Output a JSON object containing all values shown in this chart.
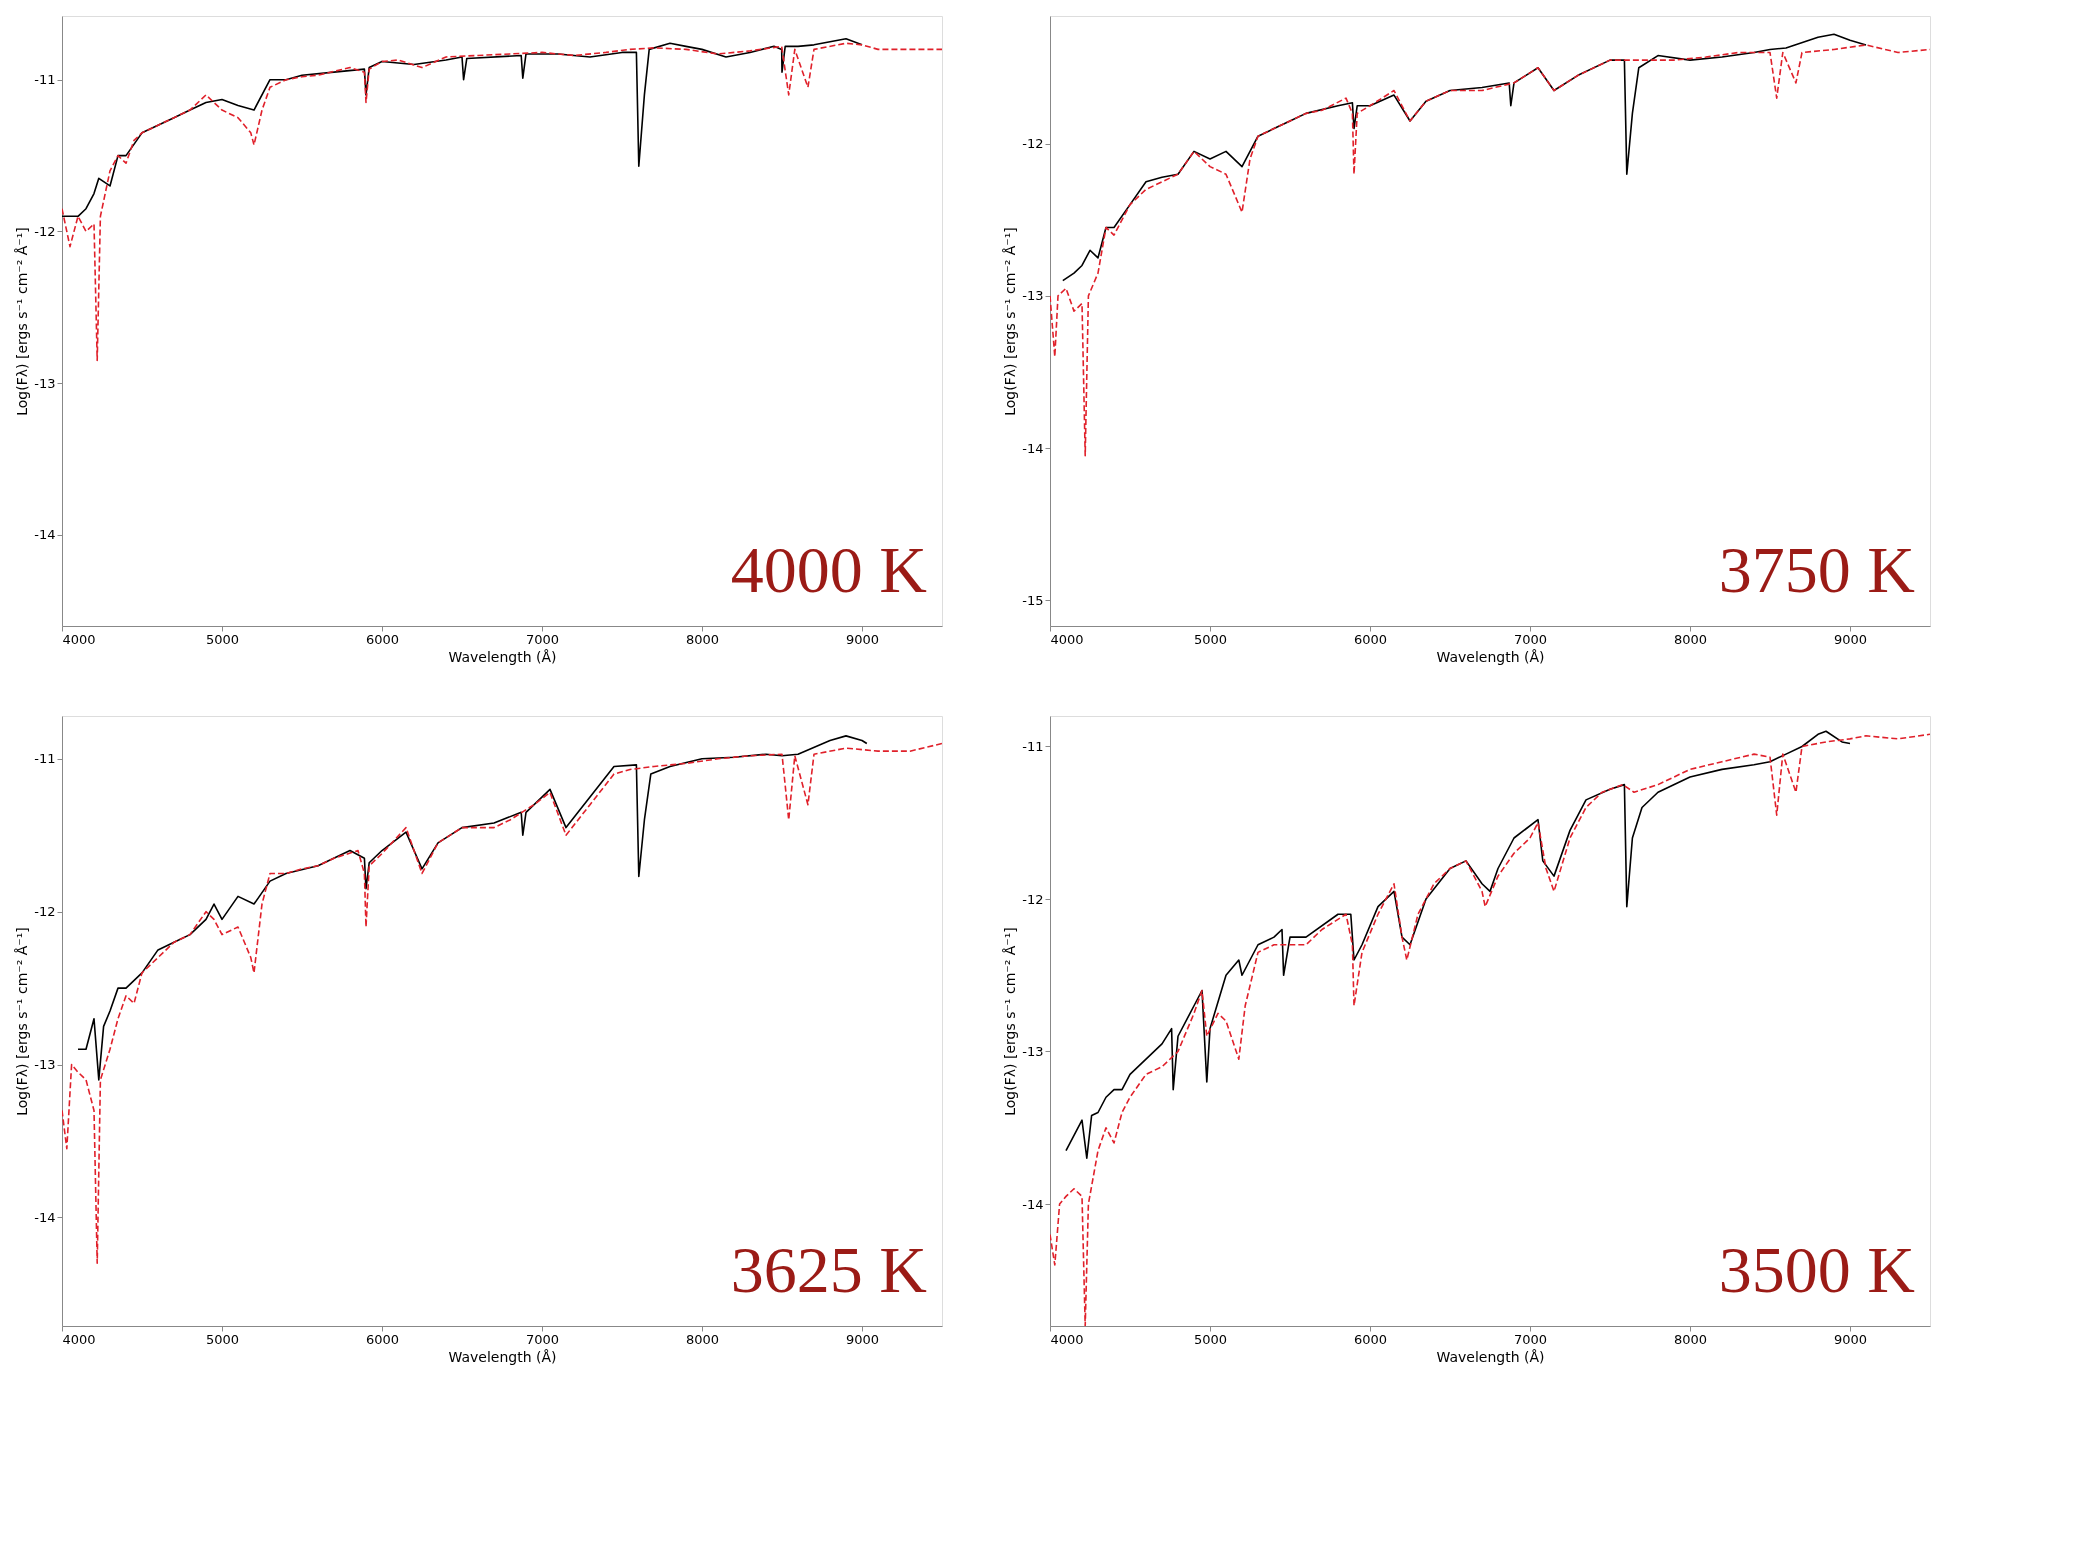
{
  "chart_data": [
    {
      "type": "line",
      "xlabel": "Wavelength (Å)",
      "ylabel": "Log(Fλ) [ergs s⁻¹ cm⁻² Å⁻¹]",
      "annotations": [
        "4000 K"
      ],
      "xlim": [
        4000,
        9500
      ],
      "xticks": [
        4000,
        5000,
        6000,
        7000,
        8000,
        9000
      ],
      "ylim": [
        -14.6,
        -10.58
      ],
      "yticks": [
        -14,
        -13,
        -12,
        -11
      ],
      "grid": false,
      "series": [
        {
          "color": "#000000",
          "line_style": "solid",
          "x": [
            4000,
            4100,
            4150,
            4200,
            4230,
            4300,
            4350,
            4400,
            4500,
            4600,
            4700,
            4800,
            4900,
            5000,
            5100,
            5200,
            5300,
            5400,
            5500,
            5700,
            5890,
            5900,
            5920,
            6000,
            6200,
            6400,
            6500,
            6510,
            6530,
            6870,
            6880,
            6900,
            7100,
            7300,
            7500,
            7590,
            7605,
            7640,
            7670,
            7800,
            7900,
            8000,
            8150,
            8300,
            8450,
            8498,
            8500,
            8520,
            8600,
            8700,
            8900,
            9000
          ],
          "values": [
            -11.9,
            -11.9,
            -11.85,
            -11.75,
            -11.65,
            -11.7,
            -11.5,
            -11.5,
            -11.35,
            -11.3,
            -11.25,
            -11.2,
            -11.15,
            -11.13,
            -11.17,
            -11.2,
            -11.0,
            -11.0,
            -10.97,
            -10.95,
            -10.93,
            -11.1,
            -10.92,
            -10.88,
            -10.9,
            -10.87,
            -10.85,
            -11.0,
            -10.86,
            -10.84,
            -10.99,
            -10.83,
            -10.83,
            -10.85,
            -10.82,
            -10.82,
            -11.57,
            -11.1,
            -10.8,
            -10.76,
            -10.78,
            -10.8,
            -10.85,
            -10.82,
            -10.78,
            -10.8,
            -10.95,
            -10.78,
            -10.78,
            -10.77,
            -10.73,
            -10.77
          ]
        },
        {
          "color": "#e0202a",
          "line_style": "dashed",
          "x": [
            4000,
            4050,
            4100,
            4150,
            4200,
            4220,
            4240,
            4300,
            4350,
            4400,
            4450,
            4500,
            4600,
            4700,
            4800,
            4900,
            5000,
            5100,
            5180,
            5200,
            5250,
            5300,
            5400,
            5500,
            5600,
            5800,
            5890,
            5900,
            5920,
            6000,
            6100,
            6250,
            6400,
            6600,
            6800,
            7000,
            7200,
            7400,
            7550,
            7700,
            7900,
            8100,
            8300,
            8498,
            8542,
            8580,
            8662,
            8700,
            8900,
            9000,
            9100,
            9300,
            9500
          ],
          "values": [
            -11.85,
            -12.1,
            -11.9,
            -12.0,
            -11.95,
            -12.85,
            -11.9,
            -11.6,
            -11.5,
            -11.55,
            -11.4,
            -11.35,
            -11.3,
            -11.25,
            -11.2,
            -11.1,
            -11.2,
            -11.25,
            -11.35,
            -11.43,
            -11.2,
            -11.05,
            -11.0,
            -10.98,
            -10.97,
            -10.92,
            -10.95,
            -11.15,
            -10.93,
            -10.88,
            -10.87,
            -10.92,
            -10.85,
            -10.84,
            -10.83,
            -10.82,
            -10.84,
            -10.82,
            -10.8,
            -10.79,
            -10.8,
            -10.83,
            -10.81,
            -10.78,
            -11.1,
            -10.8,
            -11.05,
            -10.8,
            -10.76,
            -10.77,
            -10.8,
            -10.8,
            -10.8
          ]
        }
      ]
    },
    {
      "type": "line",
      "xlabel": "Wavelength (Å)",
      "ylabel": "Log(Fλ) [ergs s⁻¹ cm⁻² Å⁻¹]",
      "annotations": [
        "3750 K"
      ],
      "xlim": [
        4000,
        9500
      ],
      "xticks": [
        4000,
        5000,
        6000,
        7000,
        8000,
        9000
      ],
      "ylim": [
        -15.17,
        -11.16
      ],
      "yticks": [
        -15,
        -14,
        -13,
        -12
      ],
      "grid": false,
      "series": [
        {
          "color": "#000000",
          "line_style": "solid",
          "x": [
            4080,
            4150,
            4200,
            4250,
            4300,
            4350,
            4400,
            4500,
            4600,
            4700,
            4800,
            4900,
            5000,
            5100,
            5200,
            5300,
            5400,
            5500,
            5600,
            5800,
            5890,
            5900,
            5920,
            6000,
            6150,
            6250,
            6350,
            6500,
            6700,
            6870,
            6880,
            6900,
            7050,
            7150,
            7300,
            7500,
            7590,
            7605,
            7640,
            7680,
            7800,
            8000,
            8200,
            8400,
            8500,
            8600,
            8800,
            8900,
            9000,
            9100
          ],
          "values": [
            -12.9,
            -12.85,
            -12.8,
            -12.7,
            -12.75,
            -12.55,
            -12.55,
            -12.4,
            -12.25,
            -12.22,
            -12.2,
            -12.05,
            -12.1,
            -12.05,
            -12.15,
            -11.95,
            -11.9,
            -11.85,
            -11.8,
            -11.75,
            -11.73,
            -11.9,
            -11.75,
            -11.75,
            -11.68,
            -11.85,
            -11.72,
            -11.65,
            -11.63,
            -11.6,
            -11.75,
            -11.6,
            -11.5,
            -11.65,
            -11.55,
            -11.45,
            -11.45,
            -12.2,
            -11.8,
            -11.5,
            -11.42,
            -11.45,
            -11.43,
            -11.4,
            -11.38,
            -11.37,
            -11.3,
            -11.28,
            -11.32,
            -11.35
          ]
        },
        {
          "color": "#e0202a",
          "line_style": "dashed",
          "x": [
            4000,
            4030,
            4050,
            4100,
            4150,
            4200,
            4220,
            4240,
            4300,
            4350,
            4400,
            4450,
            4500,
            4600,
            4700,
            4800,
            4900,
            5000,
            5100,
            5180,
            5200,
            5250,
            5300,
            5400,
            5500,
            5600,
            5700,
            5850,
            5890,
            5900,
            5920,
            6000,
            6150,
            6250,
            6350,
            6500,
            6700,
            6900,
            7050,
            7150,
            7300,
            7500,
            7700,
            7900,
            8100,
            8300,
            8500,
            8542,
            8580,
            8662,
            8700,
            8900,
            9100,
            9300,
            9500
          ],
          "values": [
            -13.0,
            -13.4,
            -13.0,
            -12.95,
            -13.1,
            -13.05,
            -14.05,
            -13.0,
            -12.85,
            -12.55,
            -12.6,
            -12.5,
            -12.4,
            -12.3,
            -12.25,
            -12.2,
            -12.05,
            -12.15,
            -12.2,
            -12.4,
            -12.45,
            -12.1,
            -11.95,
            -11.9,
            -11.85,
            -11.8,
            -11.78,
            -11.7,
            -11.8,
            -12.2,
            -11.8,
            -11.75,
            -11.65,
            -11.85,
            -11.72,
            -11.65,
            -11.65,
            -11.6,
            -11.5,
            -11.65,
            -11.55,
            -11.45,
            -11.45,
            -11.45,
            -11.43,
            -11.4,
            -11.4,
            -11.7,
            -11.4,
            -11.6,
            -11.4,
            -11.38,
            -11.35,
            -11.4,
            -11.38
          ]
        }
      ]
    },
    {
      "type": "line",
      "xlabel": "Wavelength (Å)",
      "ylabel": "Log(Fλ) [ergs s⁻¹ cm⁻² Å⁻¹]",
      "annotations": [
        "3625 K"
      ],
      "xlim": [
        4000,
        9500
      ],
      "xticks": [
        4000,
        5000,
        6000,
        7000,
        8000,
        9000
      ],
      "ylim": [
        -14.71,
        -10.72
      ],
      "yticks": [
        -14,
        -13,
        -12,
        -11
      ],
      "grid": false,
      "series": [
        {
          "color": "#000000",
          "line_style": "solid",
          "x": [
            4100,
            4150,
            4200,
            4230,
            4260,
            4300,
            4350,
            4400,
            4500,
            4600,
            4700,
            4800,
            4900,
            4950,
            5000,
            5100,
            5200,
            5300,
            5400,
            5600,
            5800,
            5890,
            5900,
            5920,
            6000,
            6150,
            6250,
            6350,
            6500,
            6700,
            6870,
            6880,
            6900,
            7050,
            7150,
            7300,
            7450,
            7590,
            7605,
            7640,
            7680,
            7800,
            8000,
            8200,
            8400,
            8500,
            8600,
            8800,
            8900,
            9000,
            9030
          ],
          "values": [
            -12.9,
            -12.9,
            -12.7,
            -13.1,
            -12.75,
            -12.65,
            -12.5,
            -12.5,
            -12.4,
            -12.25,
            -12.2,
            -12.15,
            -12.05,
            -11.95,
            -12.05,
            -11.9,
            -11.95,
            -11.8,
            -11.75,
            -11.7,
            -11.6,
            -11.65,
            -11.85,
            -11.68,
            -11.6,
            -11.48,
            -11.72,
            -11.55,
            -11.45,
            -11.42,
            -11.35,
            -11.5,
            -11.35,
            -11.2,
            -11.45,
            -11.25,
            -11.05,
            -11.04,
            -11.77,
            -11.4,
            -11.1,
            -11.05,
            -11.0,
            -10.99,
            -10.97,
            -10.98,
            -10.97,
            -10.88,
            -10.85,
            -10.88,
            -10.9
          ]
        },
        {
          "color": "#e0202a",
          "line_style": "dashed",
          "x": [
            4000,
            4030,
            4060,
            4100,
            4150,
            4200,
            4220,
            4240,
            4300,
            4350,
            4400,
            4450,
            4500,
            4600,
            4700,
            4800,
            4900,
            4950,
            5000,
            5100,
            5180,
            5200,
            5250,
            5300,
            5400,
            5500,
            5600,
            5700,
            5850,
            5890,
            5900,
            5920,
            6000,
            6150,
            6250,
            6350,
            6500,
            6700,
            6800,
            6950,
            7050,
            7150,
            7300,
            7450,
            7550,
            7700,
            7900,
            8100,
            8300,
            8500,
            8542,
            8580,
            8662,
            8700,
            8900,
            9100,
            9300,
            9500
          ],
          "values": [
            -13.3,
            -13.55,
            -13.0,
            -13.05,
            -13.1,
            -13.3,
            -14.3,
            -13.1,
            -12.9,
            -12.7,
            -12.55,
            -12.6,
            -12.4,
            -12.3,
            -12.2,
            -12.15,
            -12.0,
            -12.05,
            -12.15,
            -12.1,
            -12.3,
            -12.4,
            -11.95,
            -11.75,
            -11.75,
            -11.72,
            -11.7,
            -11.65,
            -11.6,
            -11.75,
            -12.1,
            -11.7,
            -11.62,
            -11.45,
            -11.75,
            -11.55,
            -11.45,
            -11.45,
            -11.4,
            -11.3,
            -11.22,
            -11.5,
            -11.3,
            -11.1,
            -11.07,
            -11.05,
            -11.03,
            -11.0,
            -10.98,
            -10.97,
            -11.4,
            -10.98,
            -11.3,
            -10.97,
            -10.93,
            -10.95,
            -10.95,
            -10.9
          ]
        }
      ]
    },
    {
      "type": "line",
      "xlabel": "Wavelength (Å)",
      "ylabel": "Log(Fλ) [ergs s⁻¹ cm⁻² Å⁻¹]",
      "annotations": [
        "3500 K"
      ],
      "xlim": [
        4000,
        9500
      ],
      "xticks": [
        4000,
        5000,
        6000,
        7000,
        8000,
        9000
      ],
      "ylim": [
        -14.8,
        -10.8
      ],
      "yticks": [
        -14,
        -13,
        -12,
        -11
      ],
      "grid": false,
      "series": [
        {
          "color": "#000000",
          "line_style": "solid",
          "x": [
            4100,
            4150,
            4200,
            4230,
            4260,
            4300,
            4350,
            4400,
            4450,
            4500,
            4600,
            4700,
            4760,
            4770,
            4800,
            4900,
            4950,
            4980,
            5000,
            5100,
            5180,
            5200,
            5300,
            5400,
            5450,
            5460,
            5500,
            5600,
            5800,
            5880,
            5900,
            5950,
            6050,
            6150,
            6200,
            6250,
            6350,
            6500,
            6600,
            6700,
            6750,
            6800,
            6900,
            7050,
            7080,
            7150,
            7250,
            7350,
            7500,
            7590,
            7605,
            7640,
            7700,
            7800,
            8000,
            8200,
            8400,
            8500,
            8600,
            8700,
            8800,
            8850,
            8950,
            9000
          ],
          "values": [
            -13.65,
            -13.55,
            -13.45,
            -13.7,
            -13.42,
            -13.4,
            -13.3,
            -13.25,
            -13.25,
            -13.15,
            -13.05,
            -12.95,
            -12.85,
            -13.25,
            -12.9,
            -12.7,
            -12.6,
            -13.2,
            -12.85,
            -12.5,
            -12.4,
            -12.5,
            -12.3,
            -12.25,
            -12.2,
            -12.5,
            -12.25,
            -12.25,
            -12.1,
            -12.1,
            -12.4,
            -12.3,
            -12.05,
            -11.95,
            -12.25,
            -12.3,
            -12.0,
            -11.8,
            -11.75,
            -11.9,
            -11.95,
            -11.8,
            -11.6,
            -11.48,
            -11.75,
            -11.85,
            -11.55,
            -11.35,
            -11.28,
            -11.25,
            -12.05,
            -11.6,
            -11.4,
            -11.3,
            -11.2,
            -11.15,
            -11.12,
            -11.1,
            -11.05,
            -11.0,
            -10.92,
            -10.9,
            -10.97,
            -10.98
          ]
        },
        {
          "color": "#e0202a",
          "line_style": "dashed",
          "x": [
            4000,
            4030,
            4060,
            4100,
            4150,
            4200,
            4220,
            4240,
            4300,
            4350,
            4400,
            4450,
            4500,
            4600,
            4700,
            4800,
            4900,
            4950,
            4980,
            5050,
            5100,
            5180,
            5220,
            5300,
            5400,
            5500,
            5600,
            5700,
            5850,
            5890,
            5900,
            5950,
            6050,
            6150,
            6200,
            6230,
            6300,
            6400,
            6500,
            6600,
            6700,
            6720,
            6800,
            6900,
            7000,
            7050,
            7100,
            7150,
            7250,
            7350,
            7450,
            7580,
            7650,
            7800,
            8000,
            8200,
            8400,
            8500,
            8542,
            8580,
            8662,
            8700,
            8850,
            9000,
            9100,
            9300,
            9500
          ],
          "values": [
            -14.2,
            -14.4,
            -14.0,
            -13.95,
            -13.9,
            -13.95,
            -14.8,
            -14.0,
            -13.65,
            -13.5,
            -13.6,
            -13.4,
            -13.3,
            -13.15,
            -13.1,
            -13.0,
            -12.75,
            -12.6,
            -12.9,
            -12.75,
            -12.8,
            -13.05,
            -12.7,
            -12.35,
            -12.3,
            -12.3,
            -12.3,
            -12.2,
            -12.1,
            -12.3,
            -12.7,
            -12.35,
            -12.1,
            -11.9,
            -12.25,
            -12.4,
            -12.1,
            -11.9,
            -11.8,
            -11.75,
            -11.95,
            -12.05,
            -11.85,
            -11.7,
            -11.6,
            -11.5,
            -11.8,
            -11.95,
            -11.6,
            -11.4,
            -11.3,
            -11.25,
            -11.3,
            -11.25,
            -11.15,
            -11.1,
            -11.05,
            -11.07,
            -11.45,
            -11.05,
            -11.3,
            -11.0,
            -10.97,
            -10.95,
            -10.93,
            -10.95,
            -10.92
          ]
        }
      ]
    }
  ]
}
